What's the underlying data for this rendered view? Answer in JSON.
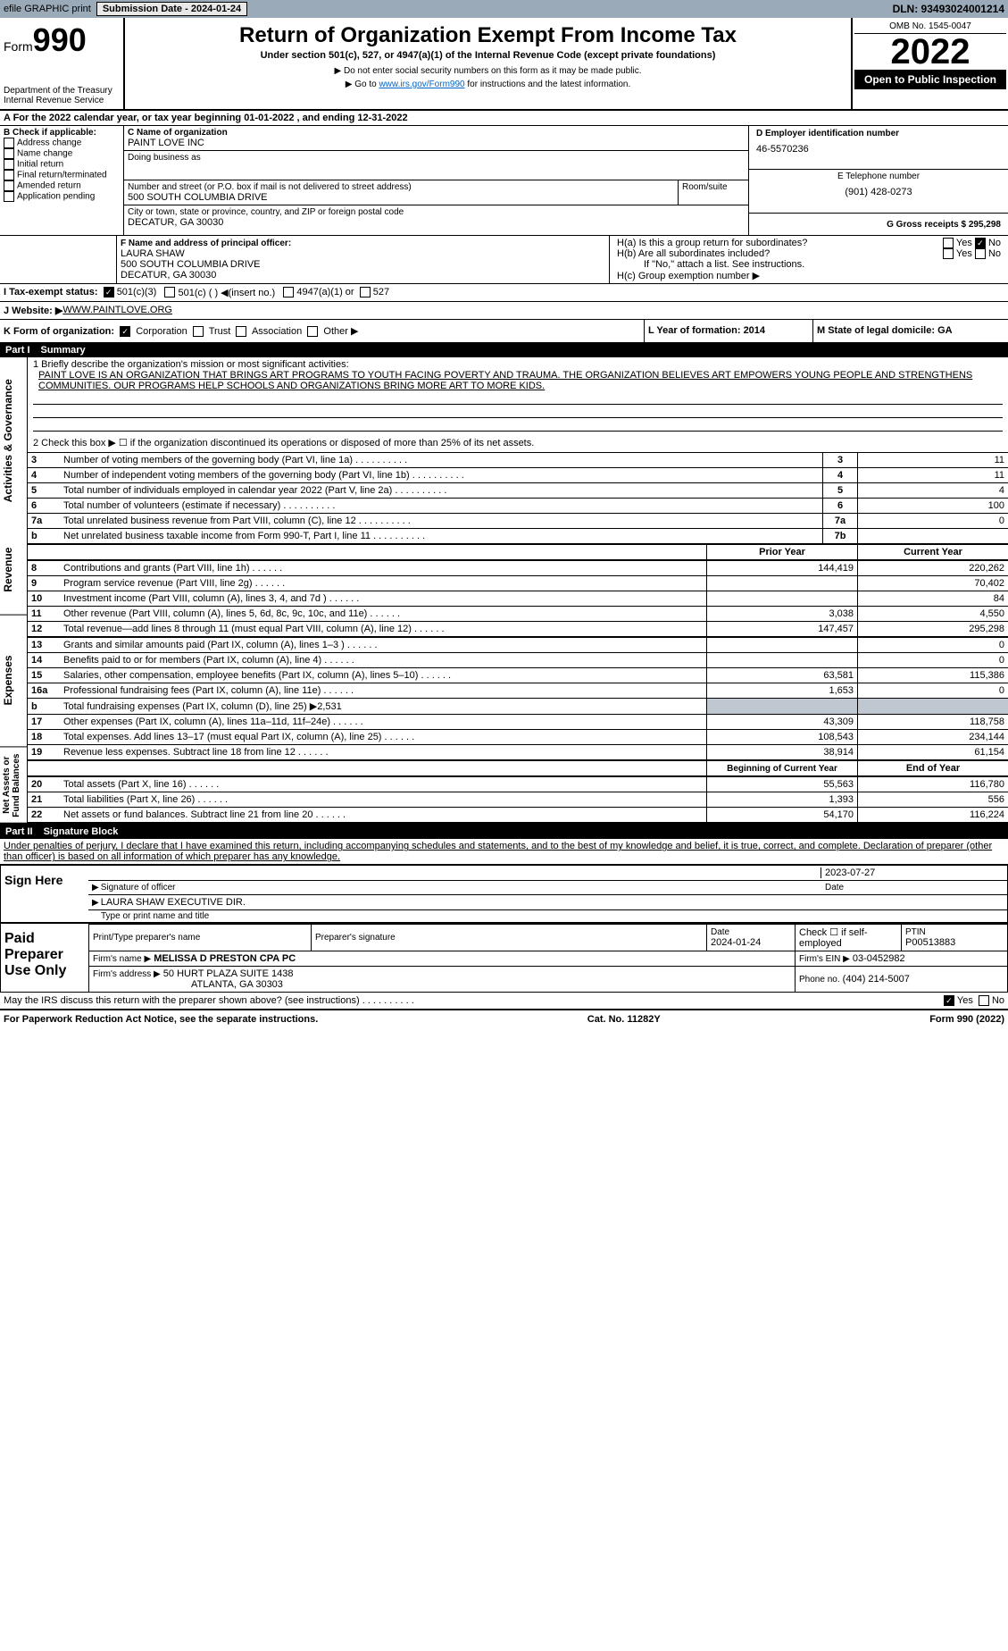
{
  "topbar": {
    "efile": "efile GRAPHIC print",
    "subdate_lbl": "Submission Date - 2024-01-24",
    "dln": "DLN: 93493024001214"
  },
  "hdr": {
    "form_word": "Form",
    "form_no": "990",
    "title": "Return of Organization Exempt From Income Tax",
    "sub1": "Under section 501(c), 527, or 4947(a)(1) of the Internal Revenue Code (except private foundations)",
    "sub2": "▶ Do not enter social security numbers on this form as it may be made public.",
    "sub3_pre": "▶ Go to ",
    "sub3_link": "www.irs.gov/Form990",
    "sub3_post": " for instructions and the latest information.",
    "dept": "Department of the Treasury",
    "irs": "Internal Revenue Service",
    "omb": "OMB No. 1545-0047",
    "year": "2022",
    "open": "Open to Public Inspection"
  },
  "A": {
    "text": "A For the 2022 calendar year, or tax year beginning 01-01-2022    , and ending 12-31-2022"
  },
  "B": {
    "hdr": "B Check if applicable:",
    "items": [
      "Address change",
      "Name change",
      "Initial return",
      "Final return/terminated",
      "Amended return",
      "Application pending"
    ]
  },
  "C": {
    "lbl": "C Name of organization",
    "name": "PAINT LOVE INC",
    "dba_lbl": "Doing business as",
    "addr_lbl": "Number and street (or P.O. box if mail is not delivered to street address)",
    "room_lbl": "Room/suite",
    "addr": "500 SOUTH COLUMBIA DRIVE",
    "city_lbl": "City or town, state or province, country, and ZIP or foreign postal code",
    "city": "DECATUR, GA  30030"
  },
  "D": {
    "lbl": "D Employer identification number",
    "val": "46-5570236"
  },
  "E": {
    "lbl": "E Telephone number",
    "val": "(901) 428-0273"
  },
  "G": {
    "lbl": "G Gross receipts $",
    "val": "295,298"
  },
  "F": {
    "lbl": "F  Name and address of principal officer:",
    "name": "LAURA SHAW",
    "addr1": "500 SOUTH COLUMBIA DRIVE",
    "addr2": "DECATUR, GA  30030"
  },
  "H": {
    "a": "H(a)  Is this a group return for subordinates?",
    "b": "H(b)  Are all subordinates included?",
    "b2": "If \"No,\" attach a list. See instructions.",
    "c": "H(c)  Group exemption number ▶",
    "yes": "Yes",
    "no": "No"
  },
  "I": {
    "lbl": "I    Tax-exempt status:",
    "o1": "501(c)(3)",
    "o2": "501(c) (   ) ◀(insert no.)",
    "o3": "4947(a)(1) or",
    "o4": "527"
  },
  "J": {
    "lbl": "J   Website: ▶",
    "val": " WWW.PAINTLOVE.ORG"
  },
  "K": {
    "lbl": "K Form of organization:",
    "o1": "Corporation",
    "o2": "Trust",
    "o3": "Association",
    "o4": "Other ▶"
  },
  "L": {
    "lbl": "L Year of formation: ",
    "val": "2014"
  },
  "M": {
    "lbl": "M State of legal domicile: ",
    "val": "GA"
  },
  "part1": {
    "lbl": "Part I",
    "title": "Summary"
  },
  "p1": {
    "l1": "1  Briefly describe the organization's mission or most significant activities:",
    "mission": "PAINT LOVE IS AN ORGANIZATION THAT BRINGS ART PROGRAMS TO YOUTH FACING POVERTY AND TRAUMA. THE ORGANIZATION BELIEVES ART EMPOWERS YOUNG PEOPLE AND STRENGTHENS COMMUNITIES. OUR PROGRAMS HELP SCHOOLS AND ORGANIZATIONS BRING MORE ART TO MORE KIDS.",
    "l2": "2  Check this box ▶ ☐ if the organization discontinued its operations or disposed of more than 25% of its net assets.",
    "rows": [
      {
        "n": "3",
        "t": "Number of voting members of the governing body (Part VI, line 1a)",
        "b": "3",
        "v": "11"
      },
      {
        "n": "4",
        "t": "Number of independent voting members of the governing body (Part VI, line 1b)",
        "b": "4",
        "v": "11"
      },
      {
        "n": "5",
        "t": "Total number of individuals employed in calendar year 2022 (Part V, line 2a)",
        "b": "5",
        "v": "4"
      },
      {
        "n": "6",
        "t": "Total number of volunteers (estimate if necessary)",
        "b": "6",
        "v": "100"
      },
      {
        "n": "7a",
        "t": "Total unrelated business revenue from Part VIII, column (C), line 12",
        "b": "7a",
        "v": "0"
      },
      {
        "n": "b",
        "t": "Net unrelated business taxable income from Form 990-T, Part I, line 11",
        "b": "7b",
        "v": ""
      }
    ],
    "py": "Prior Year",
    "cy": "Current Year",
    "rev": [
      {
        "n": "8",
        "t": "Contributions and grants (Part VIII, line 1h)",
        "p": "144,419",
        "c": "220,262"
      },
      {
        "n": "9",
        "t": "Program service revenue (Part VIII, line 2g)",
        "p": "",
        "c": "70,402"
      },
      {
        "n": "10",
        "t": "Investment income (Part VIII, column (A), lines 3, 4, and 7d )",
        "p": "",
        "c": "84"
      },
      {
        "n": "11",
        "t": "Other revenue (Part VIII, column (A), lines 5, 6d, 8c, 9c, 10c, and 11e)",
        "p": "3,038",
        "c": "4,550"
      },
      {
        "n": "12",
        "t": "Total revenue—add lines 8 through 11 (must equal Part VIII, column (A), line 12)",
        "p": "147,457",
        "c": "295,298"
      }
    ],
    "exp": [
      {
        "n": "13",
        "t": "Grants and similar amounts paid (Part IX, column (A), lines 1–3 )",
        "p": "",
        "c": "0"
      },
      {
        "n": "14",
        "t": "Benefits paid to or for members (Part IX, column (A), line 4)",
        "p": "",
        "c": "0"
      },
      {
        "n": "15",
        "t": "Salaries, other compensation, employee benefits (Part IX, column (A), lines 5–10)",
        "p": "63,581",
        "c": "115,386"
      },
      {
        "n": "16a",
        "t": "Professional fundraising fees (Part IX, column (A), line 11e)",
        "p": "1,653",
        "c": "0"
      },
      {
        "n": "b",
        "t": "Total fundraising expenses (Part IX, column (D), line 25) ▶2,531",
        "shade": true
      },
      {
        "n": "17",
        "t": "Other expenses (Part IX, column (A), lines 11a–11d, 11f–24e)",
        "p": "43,309",
        "c": "118,758"
      },
      {
        "n": "18",
        "t": "Total expenses. Add lines 13–17 (must equal Part IX, column (A), line 25)",
        "p": "108,543",
        "c": "234,144"
      },
      {
        "n": "19",
        "t": "Revenue less expenses. Subtract line 18 from line 12",
        "p": "38,914",
        "c": "61,154"
      }
    ],
    "boy": "Beginning of Current Year",
    "eoy": "End of Year",
    "net": [
      {
        "n": "20",
        "t": "Total assets (Part X, line 16)",
        "p": "55,563",
        "c": "116,780"
      },
      {
        "n": "21",
        "t": "Total liabilities (Part X, line 26)",
        "p": "1,393",
        "c": "556"
      },
      {
        "n": "22",
        "t": "Net assets or fund balances. Subtract line 21 from line 20",
        "p": "54,170",
        "c": "116,224"
      }
    ],
    "side_ag": "Activities & Governance",
    "side_rev": "Revenue",
    "side_exp": "Expenses",
    "side_net": "Net Assets or Fund Balances"
  },
  "part2": {
    "lbl": "Part II",
    "title": "Signature Block",
    "decl": "Under penalties of perjury, I declare that I have examined this return, including accompanying schedules and statements, and to the best of my knowledge and belief, it is true, correct, and complete. Declaration of preparer (other than officer) is based on all information of which preparer has any knowledge.",
    "date": "2023-07-27",
    "sig_lbl": "Signature of officer",
    "date_lbl": "Date",
    "name": "LAURA SHAW  EXECUTIVE DIR.",
    "name_lbl": "Type or print name and title",
    "sign": "Sign Here",
    "paid": "Paid Preparer Use Only",
    "pp_name_lbl": "Print/Type preparer's name",
    "pp_sig_lbl": "Preparer's signature",
    "pp_date_lbl": "Date",
    "pp_date": "2024-01-24",
    "pp_self": "Check ☐ if self-employed",
    "ptin_lbl": "PTIN",
    "ptin": "P00513883",
    "firm_lbl": "Firm's name    ▶",
    "firm": "MELISSA D PRESTON CPA PC",
    "ein_lbl": "Firm's EIN ▶",
    "ein": "03-0452982",
    "addr_lbl": "Firm's address ▶",
    "addr1": "50 HURT PLAZA SUITE 1438",
    "addr2": "ATLANTA, GA  30303",
    "phone_lbl": "Phone no.",
    "phone": "(404) 214-5007",
    "discuss": "May the IRS discuss this return with the preparer shown above? (see instructions)"
  },
  "footer": {
    "l": "For Paperwork Reduction Act Notice, see the separate instructions.",
    "c": "Cat. No. 11282Y",
    "r": "Form 990 (2022)"
  }
}
